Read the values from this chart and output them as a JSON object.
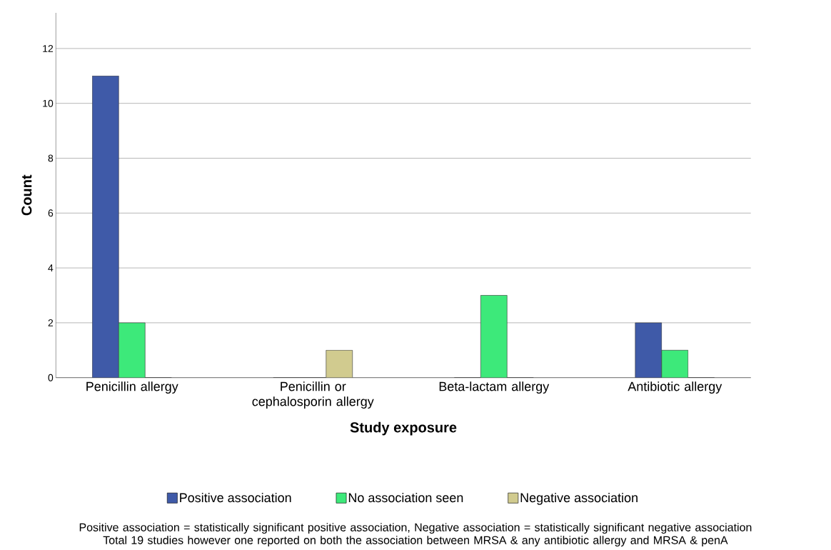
{
  "chart_data": {
    "type": "bar",
    "xlabel": "Study exposure",
    "ylabel": "Count",
    "categories": [
      "Penicillin allergy",
      "Penicillin or cephalosporin allergy",
      "Beta-lactam allergy",
      "Antibiotic allergy"
    ],
    "series": [
      {
        "name": "Positive association",
        "color": "#3f5aa8",
        "values": [
          11,
          0,
          0,
          2
        ]
      },
      {
        "name": "No association seen",
        "color": "#3de97a",
        "values": [
          2,
          0,
          3,
          1
        ]
      },
      {
        "name": "Negative association",
        "color": "#d1cb8f",
        "values": [
          0,
          1,
          0,
          0
        ]
      }
    ],
    "ylim": [
      0,
      13.3
    ],
    "yticks": [
      0,
      2,
      4,
      6,
      8,
      10,
      12
    ],
    "grid": "y",
    "legend": "bottom",
    "annotations": [
      "Positive association = statistically significant positive association, Negative association = statistically significant negative association   Total 19 studies however one reported on both the association between MRSA & any antibiotic allergy and MRSA & penA"
    ]
  }
}
